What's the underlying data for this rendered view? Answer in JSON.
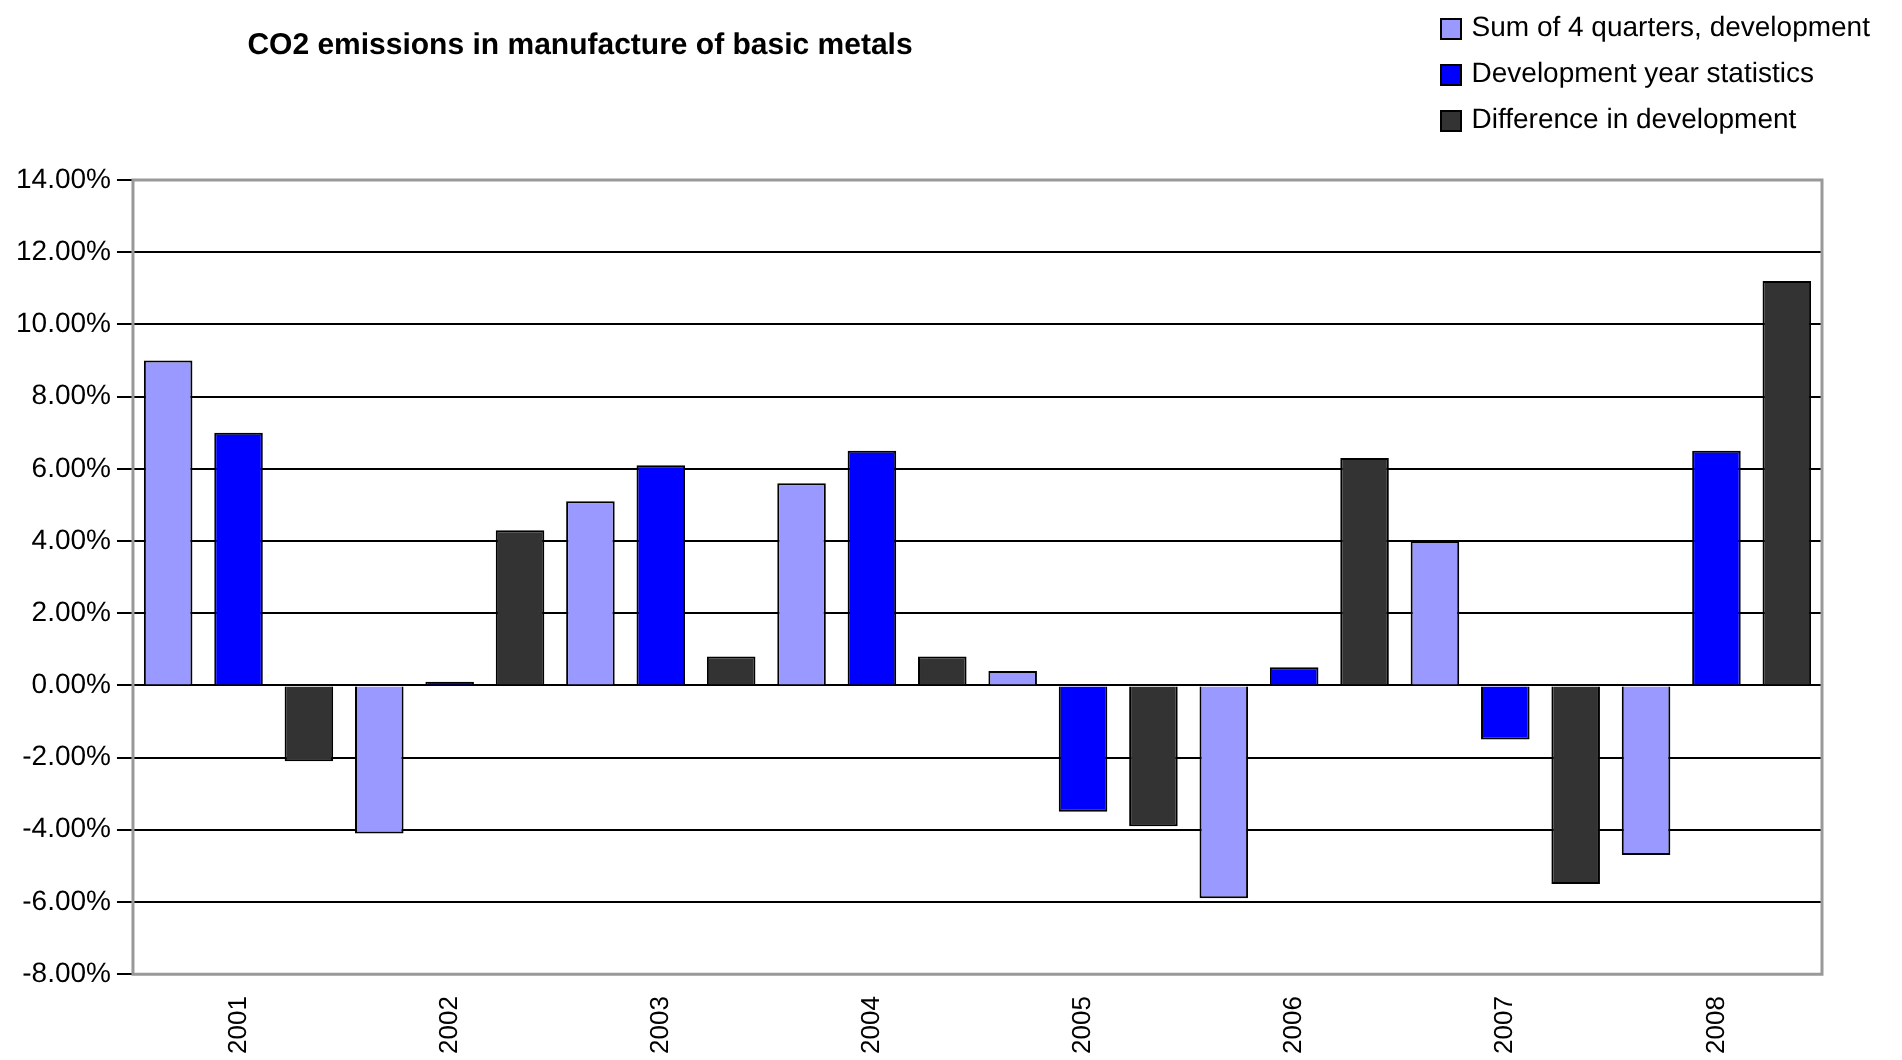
{
  "chart_data": {
    "type": "bar",
    "title": "CO2 emissions in manufacture of basic metals",
    "categories": [
      "2001",
      "2002",
      "2003",
      "2004",
      "2005",
      "2006",
      "2007",
      "2008"
    ],
    "series": [
      {
        "name": "Sum of 4 quarters, development",
        "color": "#9999ff",
        "values": [
          9.0,
          -4.1,
          5.1,
          5.6,
          0.4,
          -5.9,
          4.0,
          -4.7
        ]
      },
      {
        "name": "Development year statistics",
        "color": "#0000ff",
        "values": [
          7.0,
          0.1,
          6.1,
          6.5,
          -3.5,
          0.5,
          -1.5,
          6.5
        ]
      },
      {
        "name": "Difference in development",
        "color": "#333333",
        "values": [
          -2.1,
          4.3,
          0.8,
          0.8,
          -3.9,
          6.3,
          -5.5,
          11.2
        ]
      }
    ],
    "ylim": [
      -8,
      14
    ],
    "yticks": [
      {
        "value": -8,
        "label": "-8.00%"
      },
      {
        "value": -6,
        "label": "-6.00%"
      },
      {
        "value": -4,
        "label": "-4.00%"
      },
      {
        "value": -2,
        "label": "-2.00%"
      },
      {
        "value": 0,
        "label": "0.00%"
      },
      {
        "value": 2,
        "label": "2.00%"
      },
      {
        "value": 4,
        "label": "4.00%"
      },
      {
        "value": 6,
        "label": "6.00%"
      },
      {
        "value": 8,
        "label": "8.00%"
      },
      {
        "value": 10,
        "label": "10.00%"
      },
      {
        "value": 12,
        "label": "12.00%"
      },
      {
        "value": 14,
        "label": "14.00%"
      }
    ],
    "grid": "y",
    "legend": "top right"
  }
}
